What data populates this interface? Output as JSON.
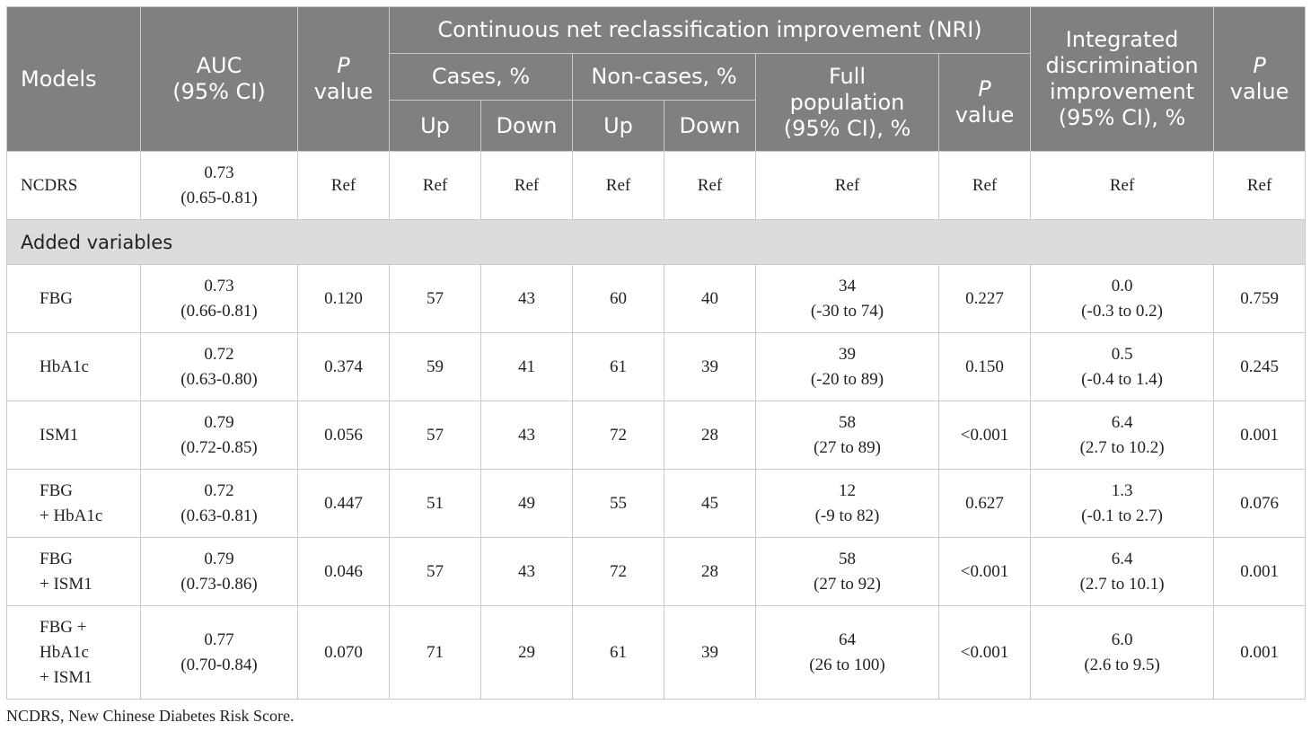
{
  "header": {
    "models": "Models",
    "auc_line1": "AUC",
    "auc_line2": "(95% CI)",
    "p_italic": "P",
    "p_value": "value",
    "nri_group": "Continuous net reclassification improvement (NRI)",
    "cases": "Cases, %",
    "noncases": "Non-cases, %",
    "up": "Up",
    "down": "Down",
    "full_line1": "Full",
    "full_line2": "population",
    "full_line3": "(95% CI), %",
    "idi_line1": "Integrated",
    "idi_line2": "discrimination",
    "idi_line3": "improvement",
    "idi_line4": "(95% CI), %"
  },
  "reference_row": {
    "model": "NCDRS",
    "auc": "0.73",
    "auc_ci": "(0.65-0.81)",
    "p_auc": "Ref",
    "cases_up": "Ref",
    "cases_down": "Ref",
    "noncases_up": "Ref",
    "noncases_down": "Ref",
    "nri_full": "Ref",
    "p_nri": "Ref",
    "idi": "Ref",
    "p_idi": "Ref"
  },
  "section_label": "Added variables",
  "rows": [
    {
      "model_lines": [
        "FBG"
      ],
      "auc": "0.73",
      "auc_ci": "(0.66-0.81)",
      "p_auc": "0.120",
      "cases_up": "57",
      "cases_down": "43",
      "noncases_up": "60",
      "noncases_down": "40",
      "nri": "34",
      "nri_ci": "(-30 to 74)",
      "p_nri": "0.227",
      "idi": "0.0",
      "idi_ci": "(-0.3 to 0.2)",
      "p_idi": "0.759"
    },
    {
      "model_lines": [
        "HbA1c"
      ],
      "auc": "0.72",
      "auc_ci": "(0.63-0.80)",
      "p_auc": "0.374",
      "cases_up": "59",
      "cases_down": "41",
      "noncases_up": "61",
      "noncases_down": "39",
      "nri": "39",
      "nri_ci": "(-20 to 89)",
      "p_nri": "0.150",
      "idi": "0.5",
      "idi_ci": "(-0.4 to 1.4)",
      "p_idi": "0.245"
    },
    {
      "model_lines": [
        "ISM1"
      ],
      "auc": "0.79",
      "auc_ci": "(0.72-0.85)",
      "p_auc": "0.056",
      "cases_up": "57",
      "cases_down": "43",
      "noncases_up": "72",
      "noncases_down": "28",
      "nri": "58",
      "nri_ci": "(27 to 89)",
      "p_nri": "<0.001",
      "idi": "6.4",
      "idi_ci": "(2.7 to 10.2)",
      "p_idi": "0.001"
    },
    {
      "model_lines": [
        "FBG",
        "+ HbA1c"
      ],
      "auc": "0.72",
      "auc_ci": "(0.63-0.81)",
      "p_auc": "0.447",
      "cases_up": "51",
      "cases_down": "49",
      "noncases_up": "55",
      "noncases_down": "45",
      "nri": "12",
      "nri_ci": "(-9 to 82)",
      "p_nri": "0.627",
      "idi": "1.3",
      "idi_ci": "(-0.1 to 2.7)",
      "p_idi": "0.076"
    },
    {
      "model_lines": [
        "FBG",
        "+ ISM1"
      ],
      "auc": "0.79",
      "auc_ci": "(0.73-0.86)",
      "p_auc": "0.046",
      "cases_up": "57",
      "cases_down": "43",
      "noncases_up": "72",
      "noncases_down": "28",
      "nri": "58",
      "nri_ci": "(27 to 92)",
      "p_nri": "<0.001",
      "idi": "6.4",
      "idi_ci": "(2.7 to 10.1)",
      "p_idi": "0.001"
    },
    {
      "model_lines": [
        "FBG +",
        "HbA1c",
        "+ ISM1"
      ],
      "auc": "0.77",
      "auc_ci": "(0.70-0.84)",
      "p_auc": "0.070",
      "cases_up": "71",
      "cases_down": "29",
      "noncases_up": "61",
      "noncases_down": "39",
      "nri": "64",
      "nri_ci": "(26 to 100)",
      "p_nri": "<0.001",
      "idi": "6.0",
      "idi_ci": "(2.6 to 9.5)",
      "p_idi": "0.001"
    }
  ],
  "footnote": "NCDRS, New Chinese Diabetes Risk Score."
}
